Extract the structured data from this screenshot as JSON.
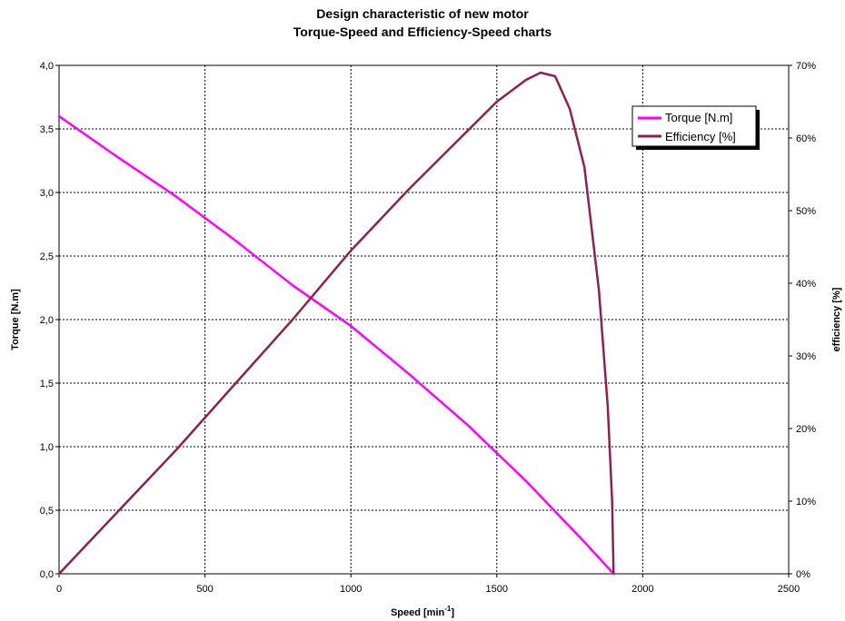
{
  "chart_data": {
    "type": "line",
    "title_lines": [
      "Design characteristic of new motor",
      "Torque-Speed and Efficiency-Speed charts"
    ],
    "xlabel_main": "Speed [min",
    "xlabel_sup": "-1",
    "xlabel_end": "]",
    "ylabel_left": "Torque [N.m]",
    "ylabel_right": "efficiency [%]",
    "xlim": [
      0,
      2500
    ],
    "ylim_left": [
      0,
      4.0
    ],
    "ylim_right": [
      0,
      70
    ],
    "x_ticks": [
      "0",
      "500",
      "1000",
      "1500",
      "2000",
      "2500"
    ],
    "y_left_ticks": [
      "0,0",
      "0,5",
      "1,0",
      "1,5",
      "2,0",
      "2,5",
      "3,0",
      "3,5",
      "4,0"
    ],
    "y_right_ticks": [
      "0%",
      "10%",
      "20%",
      "30%",
      "40%",
      "50%",
      "60%",
      "70%"
    ],
    "grid": true,
    "legend_position": "top-right",
    "series": [
      {
        "name": "Torque [N.m]",
        "axis": "left",
        "color": "#ff00ff",
        "x": [
          0,
          200,
          400,
          600,
          800,
          1000,
          1200,
          1400,
          1600,
          1800,
          1900
        ],
        "y": [
          3.6,
          3.28,
          2.97,
          2.63,
          2.27,
          1.95,
          1.57,
          1.17,
          0.73,
          0.25,
          0.0
        ]
      },
      {
        "name": "Efficiency [%]",
        "axis": "right",
        "color": "#8b2252",
        "x": [
          0,
          200,
          400,
          600,
          800,
          1000,
          1200,
          1400,
          1500,
          1600,
          1650,
          1700,
          1750,
          1800,
          1850,
          1880,
          1895,
          1900
        ],
        "y": [
          0,
          8.5,
          17,
          26,
          35,
          44.5,
          53,
          61,
          65,
          68,
          69,
          68.5,
          64,
          56,
          39,
          23,
          10,
          0
        ]
      }
    ]
  }
}
